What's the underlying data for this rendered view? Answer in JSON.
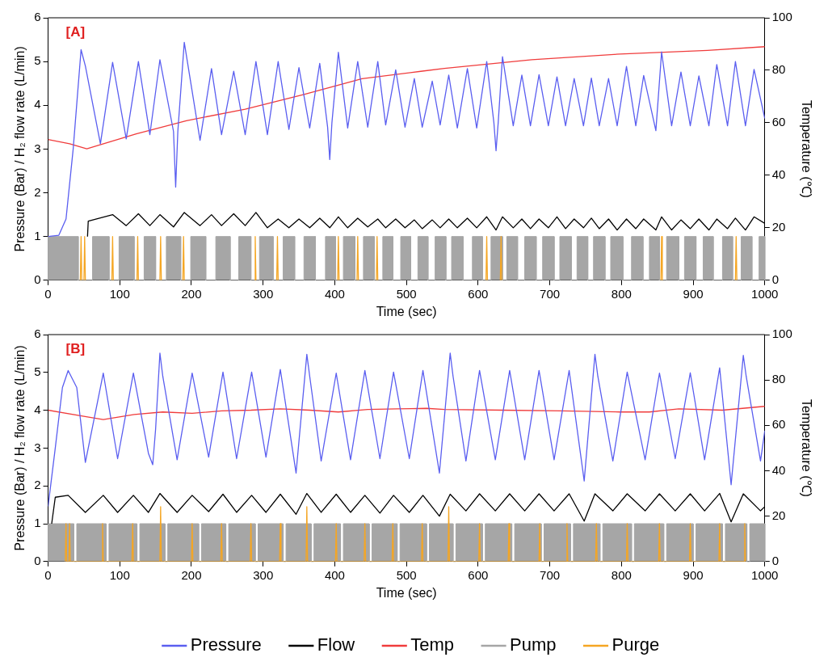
{
  "chart_data": [
    {
      "type": "line",
      "annotations": [
        "[A]"
      ],
      "xlabel": "Time (sec)",
      "ylabel": "Pressure (Bar) / H₂ flow rate (L/min)",
      "y2label": "Temperature (℃)",
      "xlim": [
        0,
        1000
      ],
      "xticks": [
        0,
        100,
        200,
        300,
        400,
        500,
        600,
        700,
        800,
        900,
        1000
      ],
      "ylim": [
        0,
        6
      ],
      "yticks": [
        0,
        1,
        2,
        3,
        4,
        5,
        6
      ],
      "y2lim": [
        0,
        100
      ],
      "y2ticks": [
        0,
        20,
        40,
        60,
        80,
        100
      ],
      "legend": false,
      "series": [
        {
          "color": "#5a5ef0",
          "x": [
            0,
            15,
            25,
            35,
            46,
            52,
            73,
            90,
            109,
            126,
            142,
            156,
            175,
            178,
            181,
            190,
            212,
            228,
            242,
            259,
            275,
            290,
            306,
            321,
            336,
            350,
            365,
            379,
            390,
            393,
            396,
            405,
            418,
            432,
            446,
            460,
            471,
            485,
            498,
            511,
            522,
            536,
            547,
            559,
            571,
            585,
            598,
            612,
            622,
            625,
            628,
            634,
            649,
            661,
            673,
            685,
            698,
            710,
            722,
            734,
            747,
            758,
            769,
            782,
            794,
            807,
            820,
            831,
            848,
            856,
            870,
            883,
            896,
            908,
            922,
            933,
            948,
            959,
            973,
            985,
            1000
          ],
          "values": [
            1.0,
            1.03,
            1.4,
            3.0,
            5.27,
            4.9,
            3.12,
            4.98,
            3.23,
            5.0,
            3.33,
            5.04,
            3.4,
            2.13,
            3.4,
            5.44,
            3.2,
            4.84,
            3.33,
            4.78,
            3.33,
            5.0,
            3.33,
            5.0,
            3.45,
            4.86,
            3.48,
            4.96,
            3.5,
            2.76,
            3.6,
            5.21,
            3.48,
            5.0,
            3.5,
            5.0,
            3.55,
            4.81,
            3.5,
            4.61,
            3.5,
            4.55,
            3.55,
            4.69,
            3.48,
            4.84,
            3.48,
            5.0,
            3.6,
            2.96,
            3.6,
            5.11,
            3.53,
            4.69,
            3.53,
            4.7,
            3.53,
            4.65,
            3.53,
            4.61,
            3.53,
            4.62,
            3.53,
            4.61,
            3.53,
            4.89,
            3.53,
            4.68,
            3.42,
            5.22,
            3.53,
            4.76,
            3.53,
            4.67,
            3.53,
            4.93,
            3.53,
            5.0,
            3.53,
            4.82,
            3.7
          ]
        },
        {
          "color": "#000000",
          "x": [
            55,
            56,
            90,
            109,
            126,
            142,
            156,
            175,
            190,
            212,
            228,
            242,
            259,
            275,
            290,
            306,
            321,
            336,
            350,
            365,
            379,
            393,
            405,
            418,
            432,
            446,
            460,
            471,
            485,
            498,
            511,
            522,
            536,
            547,
            559,
            571,
            585,
            598,
            612,
            625,
            634,
            649,
            661,
            673,
            685,
            698,
            710,
            722,
            734,
            747,
            758,
            769,
            782,
            794,
            807,
            820,
            831,
            848,
            856,
            870,
            883,
            896,
            908,
            922,
            933,
            948,
            959,
            973,
            985,
            1000
          ],
          "values": [
            1.0,
            1.35,
            1.5,
            1.25,
            1.52,
            1.25,
            1.5,
            1.22,
            1.55,
            1.25,
            1.5,
            1.25,
            1.52,
            1.25,
            1.55,
            1.2,
            1.4,
            1.2,
            1.4,
            1.2,
            1.42,
            1.2,
            1.45,
            1.2,
            1.42,
            1.22,
            1.4,
            1.2,
            1.4,
            1.2,
            1.38,
            1.18,
            1.38,
            1.2,
            1.4,
            1.2,
            1.42,
            1.2,
            1.45,
            1.15,
            1.45,
            1.2,
            1.4,
            1.18,
            1.4,
            1.2,
            1.45,
            1.18,
            1.4,
            1.2,
            1.42,
            1.18,
            1.4,
            1.15,
            1.4,
            1.18,
            1.4,
            1.15,
            1.45,
            1.15,
            1.38,
            1.18,
            1.4,
            1.15,
            1.4,
            1.18,
            1.42,
            1.15,
            1.45,
            1.3
          ]
        },
        {
          "color": "#f03c3c",
          "axis": "y2",
          "x": [
            0,
            30,
            54,
            123,
            193,
            275,
            357,
            438,
            520,
            553,
            675,
            798,
            920,
            1000
          ],
          "values": [
            53.6,
            52,
            50.1,
            55.8,
            60.8,
            65.2,
            70.8,
            76.8,
            79.6,
            80.7,
            84.0,
            86.2,
            87.6,
            89.0
          ]
        },
        {
          "color": "#a6a6a6",
          "type": "area",
          "x": [
            0,
            0,
            42,
            42,
            62,
            62,
            85,
            85,
            99,
            99,
            120,
            120,
            134,
            134,
            150,
            150,
            165,
            165,
            185,
            185,
            199,
            199,
            220,
            220,
            234,
            234,
            254,
            254,
            266,
            266,
            283,
            283,
            295,
            295,
            314,
            314,
            328,
            328,
            344,
            344,
            357,
            357,
            373,
            373,
            387,
            387,
            401,
            401,
            412,
            412,
            428,
            428,
            440,
            440,
            455,
            455,
            467,
            467,
            481,
            481,
            492,
            492,
            506,
            506,
            516,
            516,
            530,
            530,
            540,
            540,
            555,
            555,
            563,
            563,
            579,
            579,
            592,
            592,
            606,
            606,
            618,
            618,
            634,
            634,
            640,
            640,
            655,
            655,
            665,
            665,
            681,
            681,
            690,
            690,
            706,
            706,
            714,
            714,
            730,
            730,
            738,
            738,
            753,
            753,
            761,
            761,
            777,
            777,
            785,
            785,
            802,
            802,
            814,
            814,
            830,
            830,
            839,
            839,
            853,
            853,
            863,
            863,
            880,
            880,
            888,
            888,
            904,
            904,
            914,
            914,
            928,
            928,
            941,
            941,
            955,
            955,
            967,
            967,
            982,
            982,
            992,
            992,
            1000,
            1000
          ],
          "values": [
            0,
            1,
            1,
            0,
            0,
            1,
            1,
            0,
            0,
            1,
            1,
            0,
            0,
            1,
            1,
            0,
            0,
            1,
            1,
            0,
            0,
            1,
            1,
            0,
            0,
            1,
            1,
            0,
            0,
            1,
            1,
            0,
            0,
            1,
            1,
            0,
            0,
            1,
            1,
            0,
            0,
            1,
            1,
            0,
            0,
            1,
            1,
            0,
            0,
            1,
            1,
            0,
            0,
            1,
            1,
            0,
            0,
            1,
            1,
            0,
            0,
            1,
            1,
            0,
            0,
            1,
            1,
            0,
            0,
            1,
            1,
            0,
            0,
            1,
            1,
            0,
            0,
            1,
            1,
            0,
            0,
            1,
            1,
            0,
            0,
            1,
            1,
            0,
            0,
            1,
            1,
            0,
            0,
            1,
            1,
            0,
            0,
            1,
            1,
            0,
            0,
            1,
            1,
            0,
            0,
            1,
            1,
            0,
            0,
            1,
            1,
            0,
            0,
            1,
            1,
            0,
            0,
            1,
            1,
            0,
            0,
            1,
            1,
            0,
            0,
            1,
            1,
            0,
            0,
            1,
            1,
            0,
            0,
            1,
            1,
            0,
            0,
            1,
            1,
            0,
            0,
            1,
            1,
            0
          ]
        },
        {
          "color": "#f5a623",
          "x": [
            45,
            46,
            47,
            48,
            50,
            51,
            52,
            53,
            89,
            90,
            91,
            92,
            124,
            125,
            126,
            127,
            156,
            157,
            158,
            159,
            188,
            189,
            190,
            191,
            288,
            289,
            290,
            291,
            319,
            320,
            321,
            322,
            404,
            405,
            406,
            407,
            431,
            432,
            433,
            434,
            458,
            459,
            460,
            461,
            611,
            612,
            613,
            614,
            631,
            632,
            633,
            634,
            855,
            856,
            857,
            858,
            959,
            960,
            961
          ],
          "values": [
            0,
            1,
            0,
            null,
            0,
            1,
            0,
            null,
            0,
            1,
            0,
            null,
            0,
            1,
            0,
            null,
            0,
            1,
            0,
            null,
            0,
            1,
            0,
            null,
            0,
            1,
            0,
            null,
            0,
            1,
            0,
            null,
            0,
            1,
            0,
            null,
            0,
            1,
            0,
            null,
            0,
            1,
            0,
            null,
            0,
            1,
            0,
            null,
            0,
            1,
            0,
            null,
            0,
            1,
            0,
            null,
            0,
            1,
            0
          ]
        }
      ]
    },
    {
      "type": "line",
      "annotations": [
        "[B]"
      ],
      "xlabel": "Time (sec)",
      "ylabel": "Pressure (Bar) / H₂ flow rate (L/min)",
      "y2label": "Temperature (℃)",
      "xlim": [
        0,
        1000
      ],
      "xticks": [
        0,
        100,
        200,
        300,
        400,
        500,
        600,
        700,
        800,
        900,
        1000
      ],
      "ylim": [
        0,
        6
      ],
      "yticks": [
        0,
        1,
        2,
        3,
        4,
        5,
        6
      ],
      "y2lim": [
        0,
        100
      ],
      "y2ticks": [
        0,
        20,
        40,
        60,
        80,
        100
      ],
      "legend": "bottom",
      "series": [
        {
          "name": "Pressure",
          "color": "#5a5ef0",
          "x": [
            0,
            10,
            20,
            28,
            40,
            52,
            77,
            97,
            119,
            140,
            146,
            150,
            156,
            160,
            180,
            201,
            224,
            244,
            263,
            284,
            304,
            324,
            346,
            361,
            365,
            381,
            402,
            422,
            442,
            463,
            482,
            504,
            523,
            546,
            561,
            565,
            583,
            602,
            624,
            644,
            665,
            685,
            706,
            727,
            748,
            763,
            767,
            788,
            808,
            833,
            853,
            875,
            896,
            916,
            937,
            953,
            970,
            974,
            994,
            1000
          ],
          "values": [
            1.46,
            3.0,
            4.6,
            5.05,
            4.6,
            2.62,
            4.98,
            2.72,
            4.98,
            2.86,
            2.56,
            3.5,
            5.51,
            4.9,
            2.69,
            4.98,
            2.76,
            5.01,
            2.72,
            5.01,
            2.76,
            5.08,
            2.34,
            5.48,
            4.9,
            2.66,
            4.98,
            2.69,
            5.05,
            2.72,
            5.01,
            2.72,
            5.05,
            2.34,
            5.51,
            4.9,
            2.66,
            5.05,
            2.69,
            5.05,
            2.69,
            5.05,
            2.69,
            5.05,
            2.13,
            5.48,
            4.9,
            2.66,
            5.01,
            2.69,
            4.98,
            2.72,
            4.99,
            2.69,
            5.12,
            2.03,
            5.45,
            4.9,
            2.66,
            3.46
          ]
        },
        {
          "name": "Flow",
          "color": "#000000",
          "x": [
            5,
            10,
            28,
            52,
            77,
            97,
            119,
            140,
            156,
            180,
            201,
            224,
            244,
            263,
            284,
            304,
            324,
            346,
            361,
            381,
            402,
            422,
            442,
            463,
            482,
            504,
            523,
            546,
            561,
            583,
            602,
            624,
            644,
            665,
            685,
            706,
            727,
            748,
            763,
            788,
            808,
            833,
            853,
            875,
            896,
            916,
            937,
            953,
            970,
            994,
            1000
          ],
          "values": [
            1.0,
            1.7,
            1.75,
            1.3,
            1.75,
            1.3,
            1.75,
            1.3,
            1.8,
            1.3,
            1.75,
            1.32,
            1.78,
            1.3,
            1.75,
            1.3,
            1.78,
            1.25,
            1.8,
            1.3,
            1.78,
            1.3,
            1.75,
            1.28,
            1.75,
            1.3,
            1.75,
            1.2,
            1.78,
            1.34,
            1.79,
            1.34,
            1.79,
            1.34,
            1.79,
            1.34,
            1.79,
            1.07,
            1.79,
            1.34,
            1.79,
            1.34,
            1.79,
            1.34,
            1.79,
            1.34,
            1.8,
            1.05,
            1.79,
            1.34,
            1.45
          ]
        },
        {
          "name": "Temp",
          "color": "#f03c3c",
          "axis": "y2",
          "x": [
            0,
            55,
            77,
            120,
            160,
            201,
            242,
            283,
            324,
            365,
            405,
            446,
            487,
            528,
            553,
            634,
            716,
            798,
            839,
            880,
            941,
            1000
          ],
          "values": [
            66.7,
            63.7,
            62.6,
            64.8,
            65.9,
            65.3,
            66.4,
            66.7,
            67.3,
            66.7,
            65.9,
            67,
            67.3,
            67.5,
            67,
            66.7,
            66.4,
            65.9,
            65.9,
            67.3,
            66.7,
            68.4
          ]
        },
        {
          "name": "Pump",
          "color": "#a6a6a6",
          "type": "area",
          "x": [
            0,
            0,
            36,
            36,
            40,
            40,
            81,
            81,
            85,
            85,
            124,
            124,
            128,
            128,
            163,
            163,
            167,
            167,
            210,
            210,
            214,
            214,
            248,
            248,
            252,
            252,
            289,
            289,
            293,
            293,
            328,
            328,
            332,
            332,
            367,
            367,
            371,
            371,
            408,
            408,
            412,
            412,
            448,
            448,
            452,
            452,
            487,
            487,
            491,
            491,
            528,
            528,
            532,
            532,
            565,
            565,
            569,
            569,
            606,
            606,
            610,
            610,
            647,
            647,
            651,
            651,
            688,
            688,
            692,
            692,
            729,
            729,
            733,
            733,
            770,
            770,
            774,
            774,
            814,
            814,
            818,
            818,
            859,
            859,
            863,
            863,
            900,
            900,
            904,
            904,
            941,
            941,
            945,
            945,
            975,
            975,
            979,
            979,
            1000,
            1000
          ],
          "values": [
            0,
            1,
            1,
            0,
            0,
            1,
            1,
            0,
            0,
            1,
            1,
            0,
            0,
            1,
            1,
            0,
            0,
            1,
            1,
            0,
            0,
            1,
            1,
            0,
            0,
            1,
            1,
            0,
            0,
            1,
            1,
            0,
            0,
            1,
            1,
            0,
            0,
            1,
            1,
            0,
            0,
            1,
            1,
            0,
            0,
            1,
            1,
            0,
            0,
            1,
            1,
            0,
            0,
            1,
            1,
            0,
            0,
            1,
            1,
            0,
            0,
            1,
            1,
            0,
            0,
            1,
            1,
            0,
            0,
            1,
            1,
            0,
            0,
            1,
            1,
            0,
            0,
            1,
            1,
            0,
            0,
            1,
            1,
            0,
            0,
            1,
            1,
            0,
            0,
            1,
            1,
            0,
            0,
            1,
            1,
            0,
            0,
            1,
            1,
            0
          ]
        },
        {
          "name": "Purge",
          "color": "#f5a623",
          "x": [
            24,
            25,
            26,
            29,
            30,
            31,
            75,
            76,
            77,
            117,
            118,
            119,
            156,
            157,
            158,
            200,
            201,
            202,
            241,
            242,
            243,
            282,
            283,
            284,
            323,
            324,
            325,
            360,
            361,
            362,
            401,
            402,
            403,
            441,
            442,
            443,
            480,
            481,
            482,
            521,
            522,
            523,
            558,
            559,
            560,
            601,
            602,
            603,
            642,
            643,
            644,
            685,
            686,
            687,
            723,
            724,
            725,
            764,
            765,
            766,
            807,
            808,
            809,
            852,
            853,
            854,
            895,
            896,
            897,
            936,
            937,
            938,
            971,
            972,
            973
          ],
          "values": [
            0,
            1,
            0,
            0,
            1,
            0,
            0,
            1,
            0,
            0,
            1,
            0,
            0,
            1.45,
            0,
            0,
            1,
            0,
            0,
            1,
            0,
            0,
            1,
            0,
            0,
            1,
            0,
            0,
            1.45,
            0,
            0,
            1,
            0,
            0,
            1,
            0,
            0,
            1,
            0,
            0,
            1,
            0,
            0,
            1.45,
            0,
            0,
            1,
            0,
            0,
            1,
            0,
            0,
            1,
            0,
            0,
            1,
            0,
            0,
            1,
            0,
            0,
            1,
            0,
            0,
            1,
            0,
            0,
            1,
            0,
            0,
            1,
            0,
            0,
            1,
            0
          ]
        }
      ]
    }
  ]
}
